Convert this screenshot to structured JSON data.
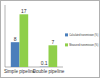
{
  "chart_data": {
    "type": "bar",
    "categories": [
      "Simple pipeline",
      "Double pipeline"
    ],
    "series": [
      {
        "name": "Calculated transmission (%)",
        "color": "#4a7ebb",
        "values": [
          8,
          0.1
        ]
      },
      {
        "name": "Measured transmission (%)",
        "color": "#8fcf4a",
        "values": [
          17,
          7
        ]
      }
    ],
    "ylim": [
      0,
      20
    ],
    "tick_labels": "x",
    "data_labels": true,
    "legend": "right"
  }
}
